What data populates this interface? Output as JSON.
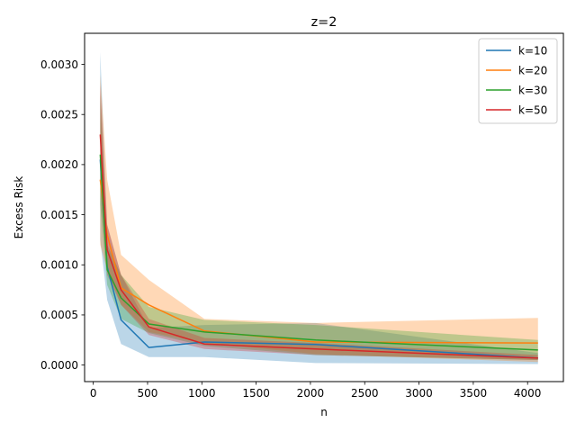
{
  "chart_data": {
    "type": "line",
    "title": "z=2",
    "xlabel": "n",
    "ylabel": "Excess Risk",
    "xlim": [
      -80,
      4330
    ],
    "ylim": [
      -0.000165,
      0.00331
    ],
    "xticks": [
      0,
      500,
      1000,
      1500,
      2000,
      2500,
      3000,
      3500,
      4000
    ],
    "yticks": [
      0.0,
      0.0005,
      0.001,
      0.0015,
      0.002,
      0.0025,
      0.003
    ],
    "ytick_labels": [
      "0.0000",
      "0.0005",
      "0.0010",
      "0.0015",
      "0.0020",
      "0.0025",
      "0.0030"
    ],
    "legend_position": "upper right",
    "x": [
      64,
      128,
      256,
      512,
      1024,
      2048,
      4096
    ],
    "series": [
      {
        "name": "k=10",
        "color": "#1f77b4",
        "values": [
          0.00205,
          0.00098,
          0.00045,
          0.000175,
          0.00023,
          0.000205,
          7e-05
        ],
        "lower": [
          0.00125,
          0.00065,
          0.00021,
          8e-05,
          8e-05,
          2e-05,
          1e-05
        ],
        "upper": [
          0.00312,
          0.0014,
          0.0009,
          0.00037,
          0.0004,
          0.00042,
          0.00012
        ]
      },
      {
        "name": "k=20",
        "color": "#ff7f0e",
        "values": [
          0.00185,
          0.0013,
          0.00077,
          0.0006,
          0.00034,
          0.00023,
          0.00022
        ],
        "lower": [
          0.0012,
          0.00095,
          0.0006,
          0.00033,
          0.00022,
          0.00011,
          3e-05
        ],
        "upper": [
          0.0029,
          0.00185,
          0.0011,
          0.00085,
          0.00046,
          0.00042,
          0.00047
        ]
      },
      {
        "name": "k=30",
        "color": "#2ca02c",
        "values": [
          0.0021,
          0.00095,
          0.00067,
          0.00041,
          0.00033,
          0.00025,
          0.00015
        ],
        "lower": [
          0.0016,
          0.0008,
          0.00046,
          0.00032,
          0.00019,
          0.0001,
          5e-05
        ],
        "upper": [
          0.0027,
          0.0012,
          0.0009,
          0.00058,
          0.00045,
          0.0004,
          0.00025
        ]
      },
      {
        "name": "k=50",
        "color": "#d62728",
        "values": [
          0.0023,
          0.00115,
          0.00075,
          0.00038,
          0.00021,
          0.00016,
          7e-05
        ],
        "lower": [
          0.0018,
          0.0009,
          0.0006,
          0.0003,
          0.00016,
          0.0001,
          5e-05
        ],
        "upper": [
          0.0028,
          0.0014,
          0.0009,
          0.00046,
          0.00027,
          0.00022,
          0.0001
        ]
      }
    ]
  }
}
